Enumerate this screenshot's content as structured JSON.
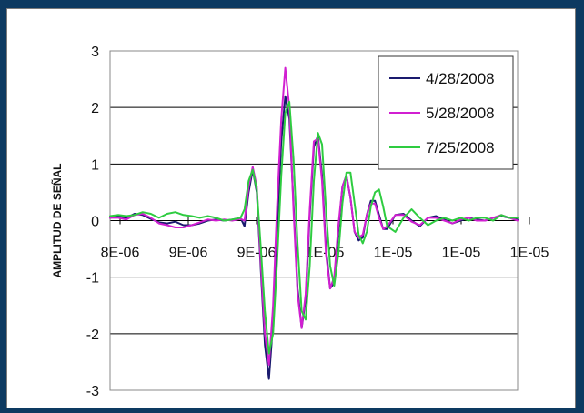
{
  "chart_data": {
    "type": "line",
    "title": "",
    "xlabel": "",
    "ylabel": "AMPLITUD DE SEÑAL",
    "ylim": [
      -3,
      3
    ],
    "yticks": [
      "3",
      "2",
      "1",
      "0",
      "-1",
      "-2",
      "-3"
    ],
    "xtick_labels": [
      "8E-06",
      "9E-06",
      "9E-06",
      "1E-05",
      "1E-05",
      "1E-05",
      "1E-05"
    ],
    "grid": "horizontal",
    "legend_position": "top-right",
    "x_index_range": [
      0,
      100
    ],
    "series": [
      {
        "name": "4/28/2008",
        "color": "#1a1a6e",
        "points": [
          [
            0,
            0.05
          ],
          [
            2,
            0.08
          ],
          [
            4,
            0.05
          ],
          [
            6,
            0.12
          ],
          [
            8,
            0.1
          ],
          [
            10,
            0.03
          ],
          [
            12,
            -0.03
          ],
          [
            14,
            -0.05
          ],
          [
            16,
            -0.02
          ],
          [
            18,
            -0.08
          ],
          [
            20,
            -0.08
          ],
          [
            22,
            -0.05
          ],
          [
            24,
            0.0
          ],
          [
            26,
            0.02
          ],
          [
            28,
            0.0
          ],
          [
            30,
            0.02
          ],
          [
            32,
            0.05
          ],
          [
            33,
            -0.1
          ],
          [
            34,
            0.5
          ],
          [
            35,
            0.9
          ],
          [
            36,
            0.5
          ],
          [
            37,
            -0.9
          ],
          [
            38,
            -2.2
          ],
          [
            39,
            -2.8
          ],
          [
            40,
            -1.8
          ],
          [
            41,
            -0.1
          ],
          [
            42,
            1.4
          ],
          [
            43,
            2.2
          ],
          [
            44,
            1.8
          ],
          [
            45,
            0.3
          ],
          [
            46,
            -1.2
          ],
          [
            47,
            -1.9
          ],
          [
            48,
            -1.4
          ],
          [
            49,
            0.1
          ],
          [
            50,
            1.3
          ],
          [
            51,
            1.5
          ],
          [
            52,
            0.8
          ],
          [
            53,
            -0.5
          ],
          [
            54,
            -1.2
          ],
          [
            55,
            -1.1
          ],
          [
            56,
            -0.2
          ],
          [
            57,
            0.6
          ],
          [
            58,
            0.8
          ],
          [
            59,
            0.4
          ],
          [
            60,
            -0.2
          ],
          [
            61,
            -0.35
          ],
          [
            62,
            -0.3
          ],
          [
            63,
            0.1
          ],
          [
            64,
            0.35
          ],
          [
            65,
            0.35
          ],
          [
            66,
            0.1
          ],
          [
            67,
            -0.15
          ],
          [
            68,
            -0.15
          ],
          [
            70,
            0.1
          ],
          [
            72,
            0.12
          ],
          [
            74,
            0.0
          ],
          [
            76,
            -0.1
          ],
          [
            78,
            0.05
          ],
          [
            80,
            0.08
          ],
          [
            82,
            0.02
          ],
          [
            84,
            -0.05
          ],
          [
            86,
            0.0
          ],
          [
            88,
            0.05
          ],
          [
            90,
            0.02
          ],
          [
            92,
            0.0
          ],
          [
            94,
            0.05
          ],
          [
            96,
            0.08
          ],
          [
            98,
            0.05
          ],
          [
            100,
            0.02
          ]
        ]
      },
      {
        "name": "5/28/2008",
        "color": "#d11fd1",
        "points": [
          [
            0,
            0.05
          ],
          [
            2,
            0.05
          ],
          [
            4,
            0.02
          ],
          [
            6,
            0.1
          ],
          [
            8,
            0.12
          ],
          [
            10,
            0.05
          ],
          [
            12,
            -0.05
          ],
          [
            14,
            -0.08
          ],
          [
            16,
            -0.12
          ],
          [
            18,
            -0.12
          ],
          [
            20,
            -0.08
          ],
          [
            22,
            -0.03
          ],
          [
            24,
            0.02
          ],
          [
            26,
            0.0
          ],
          [
            28,
            0.02
          ],
          [
            30,
            0.0
          ],
          [
            32,
            0.03
          ],
          [
            33,
            0.0
          ],
          [
            34,
            0.6
          ],
          [
            35,
            0.95
          ],
          [
            36,
            0.6
          ],
          [
            37,
            -0.8
          ],
          [
            38,
            -2.0
          ],
          [
            39,
            -2.55
          ],
          [
            40,
            -1.5
          ],
          [
            41,
            0.3
          ],
          [
            42,
            1.8
          ],
          [
            43,
            2.7
          ],
          [
            44,
            2.0
          ],
          [
            45,
            0.2
          ],
          [
            46,
            -1.3
          ],
          [
            47,
            -1.9
          ],
          [
            48,
            -1.3
          ],
          [
            49,
            0.2
          ],
          [
            50,
            1.4
          ],
          [
            51,
            1.45
          ],
          [
            52,
            0.7
          ],
          [
            53,
            -0.6
          ],
          [
            54,
            -1.2
          ],
          [
            55,
            -1.0
          ],
          [
            56,
            -0.1
          ],
          [
            57,
            0.6
          ],
          [
            58,
            0.8
          ],
          [
            59,
            0.4
          ],
          [
            60,
            -0.2
          ],
          [
            61,
            -0.3
          ],
          [
            62,
            -0.25
          ],
          [
            63,
            0.1
          ],
          [
            64,
            0.3
          ],
          [
            65,
            0.3
          ],
          [
            66,
            0.05
          ],
          [
            67,
            -0.15
          ],
          [
            68,
            -0.1
          ],
          [
            70,
            0.1
          ],
          [
            72,
            0.1
          ],
          [
            74,
            -0.02
          ],
          [
            76,
            -0.08
          ],
          [
            78,
            0.05
          ],
          [
            80,
            0.05
          ],
          [
            82,
            0.0
          ],
          [
            84,
            -0.05
          ],
          [
            86,
            0.02
          ],
          [
            88,
            0.05
          ],
          [
            90,
            0.0
          ],
          [
            92,
            0.0
          ],
          [
            94,
            0.05
          ],
          [
            96,
            0.1
          ],
          [
            98,
            0.05
          ],
          [
            100,
            0.0
          ]
        ]
      },
      {
        "name": "7/25/2008",
        "color": "#2ecc40",
        "points": [
          [
            0,
            0.08
          ],
          [
            2,
            0.1
          ],
          [
            4,
            0.08
          ],
          [
            6,
            0.1
          ],
          [
            8,
            0.15
          ],
          [
            10,
            0.12
          ],
          [
            12,
            0.05
          ],
          [
            14,
            0.12
          ],
          [
            16,
            0.15
          ],
          [
            18,
            0.1
          ],
          [
            20,
            0.08
          ],
          [
            22,
            0.05
          ],
          [
            24,
            0.08
          ],
          [
            26,
            0.05
          ],
          [
            28,
            0.0
          ],
          [
            30,
            0.02
          ],
          [
            32,
            0.05
          ],
          [
            33,
            0.2
          ],
          [
            34,
            0.7
          ],
          [
            35,
            0.9
          ],
          [
            36,
            0.55
          ],
          [
            37,
            -0.5
          ],
          [
            38,
            -1.6
          ],
          [
            39,
            -2.35
          ],
          [
            40,
            -2.0
          ],
          [
            41,
            -0.7
          ],
          [
            42,
            0.8
          ],
          [
            43,
            1.9
          ],
          [
            44,
            2.1
          ],
          [
            45,
            1.1
          ],
          [
            46,
            -0.4
          ],
          [
            47,
            -1.6
          ],
          [
            48,
            -1.75
          ],
          [
            49,
            -0.8
          ],
          [
            50,
            0.7
          ],
          [
            51,
            1.55
          ],
          [
            52,
            1.35
          ],
          [
            53,
            0.2
          ],
          [
            54,
            -0.8
          ],
          [
            55,
            -1.15
          ],
          [
            56,
            -0.6
          ],
          [
            57,
            0.3
          ],
          [
            58,
            0.85
          ],
          [
            59,
            0.85
          ],
          [
            60,
            0.3
          ],
          [
            61,
            -0.25
          ],
          [
            62,
            -0.4
          ],
          [
            63,
            -0.2
          ],
          [
            64,
            0.25
          ],
          [
            65,
            0.5
          ],
          [
            66,
            0.55
          ],
          [
            67,
            0.25
          ],
          [
            68,
            -0.1
          ],
          [
            70,
            -0.2
          ],
          [
            72,
            0.05
          ],
          [
            74,
            0.2
          ],
          [
            76,
            0.05
          ],
          [
            78,
            -0.08
          ],
          [
            80,
            0.0
          ],
          [
            82,
            0.05
          ],
          [
            84,
            0.0
          ],
          [
            86,
            0.05
          ],
          [
            88,
            0.0
          ],
          [
            90,
            0.05
          ],
          [
            92,
            0.05
          ],
          [
            94,
            0.0
          ],
          [
            96,
            0.1
          ],
          [
            98,
            0.05
          ],
          [
            100,
            0.05
          ]
        ]
      }
    ]
  }
}
